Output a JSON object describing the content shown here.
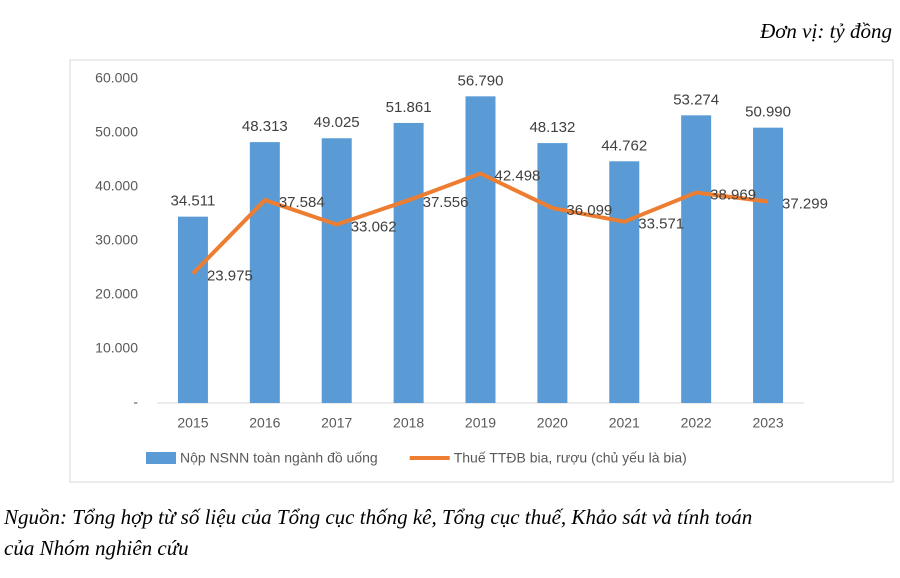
{
  "chart_data": {
    "type": "bar",
    "unit": "Đơn vị: tỷ đồng",
    "categories": [
      "2015",
      "2016",
      "2017",
      "2018",
      "2019",
      "2020",
      "2021",
      "2022",
      "2023"
    ],
    "series": [
      {
        "name": "Nộp NSNN toàn ngành đồ uống",
        "type": "bar",
        "color": "#5b9bd5",
        "values": [
          34511,
          48313,
          49025,
          51861,
          56790,
          48132,
          44762,
          53274,
          50990
        ],
        "value_labels": [
          "34.511",
          "48.313",
          "49.025",
          "51.861",
          "56.790",
          "48.132",
          "44.762",
          "53.274",
          "50.990"
        ]
      },
      {
        "name": "Thuế TTĐB bia, rượu (chủ yếu là bia)",
        "type": "line",
        "color": "#ed7d31",
        "values": [
          23975,
          37584,
          33062,
          37556,
          42498,
          36099,
          33571,
          38969,
          37299
        ],
        "value_labels": [
          "23.975",
          "37.584",
          "33.062",
          "37.556",
          "42.498",
          "36.099",
          "33.571",
          "38.969",
          "37.299"
        ]
      }
    ],
    "ylim": [
      0,
      60000
    ],
    "yticks": [
      {
        "value": 0,
        "label": "-"
      },
      {
        "value": 10000,
        "label": "10.000"
      },
      {
        "value": 20000,
        "label": "20.000"
      },
      {
        "value": 30000,
        "label": "30.000"
      },
      {
        "value": 40000,
        "label": "40.000"
      },
      {
        "value": 50000,
        "label": "50.000"
      },
      {
        "value": 60000,
        "label": "60.000"
      }
    ],
    "grid": false,
    "legend": "bottom"
  },
  "source": [
    "Nguồn: Tổng hợp từ số liệu của Tổng cục thống kê, Tổng cục thuế, Khảo sát và tính toán",
    "của Nhóm nghiên cứu"
  ]
}
